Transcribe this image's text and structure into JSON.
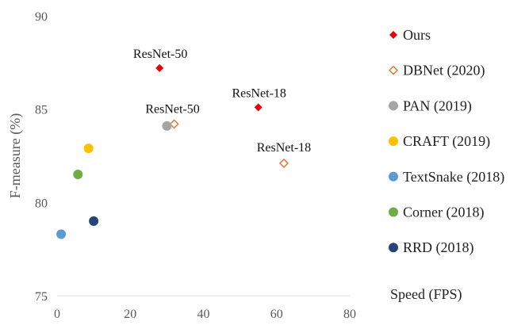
{
  "chart_data": {
    "type": "scatter",
    "title": "",
    "xlabel": "Speed (FPS)",
    "ylabel": "F-measure (%)",
    "xlim": [
      0,
      80
    ],
    "ylim": [
      75,
      90
    ],
    "xticks": [
      0,
      20,
      40,
      60,
      80
    ],
    "yticks": [
      75,
      80,
      85,
      90
    ],
    "grid": false,
    "legend_position": "right",
    "series": [
      {
        "name": "Ours",
        "marker": "diamond-filled",
        "color": "#e8000b",
        "points": [
          {
            "x": 28,
            "y": 87.2
          },
          {
            "x": 55,
            "y": 85.1
          }
        ]
      },
      {
        "name": "DBNet (2020)",
        "marker": "diamond-open",
        "color": "#e07b39",
        "points": [
          {
            "x": 32,
            "y": 84.2
          },
          {
            "x": 62,
            "y": 82.1
          }
        ]
      },
      {
        "name": "PAN (2019)",
        "marker": "circle",
        "color": "#a5a5a5",
        "points": [
          {
            "x": 30,
            "y": 84.1
          }
        ]
      },
      {
        "name": "CRAFT (2019)",
        "marker": "circle",
        "color": "#ffc000",
        "points": [
          {
            "x": 8.6,
            "y": 82.9
          }
        ]
      },
      {
        "name": "TextSnake (2018)",
        "marker": "circle",
        "color": "#5b9bd5",
        "points": [
          {
            "x": 1.1,
            "y": 78.3
          }
        ]
      },
      {
        "name": "Corner (2018)",
        "marker": "circle",
        "color": "#70ad47",
        "points": [
          {
            "x": 5.7,
            "y": 81.5
          }
        ]
      },
      {
        "name": "RRD (2018)",
        "marker": "circle",
        "color": "#264478",
        "points": [
          {
            "x": 10,
            "y": 79.0
          }
        ]
      }
    ],
    "annotations": [
      {
        "text": "ResNet-50",
        "x": 28,
        "y": 87.2
      },
      {
        "text": "ResNet-18",
        "x": 55,
        "y": 85.1
      },
      {
        "text": "ResNet-50",
        "x": 32,
        "y": 84.2
      },
      {
        "text": "ResNet-18",
        "x": 62,
        "y": 82.1
      }
    ]
  }
}
